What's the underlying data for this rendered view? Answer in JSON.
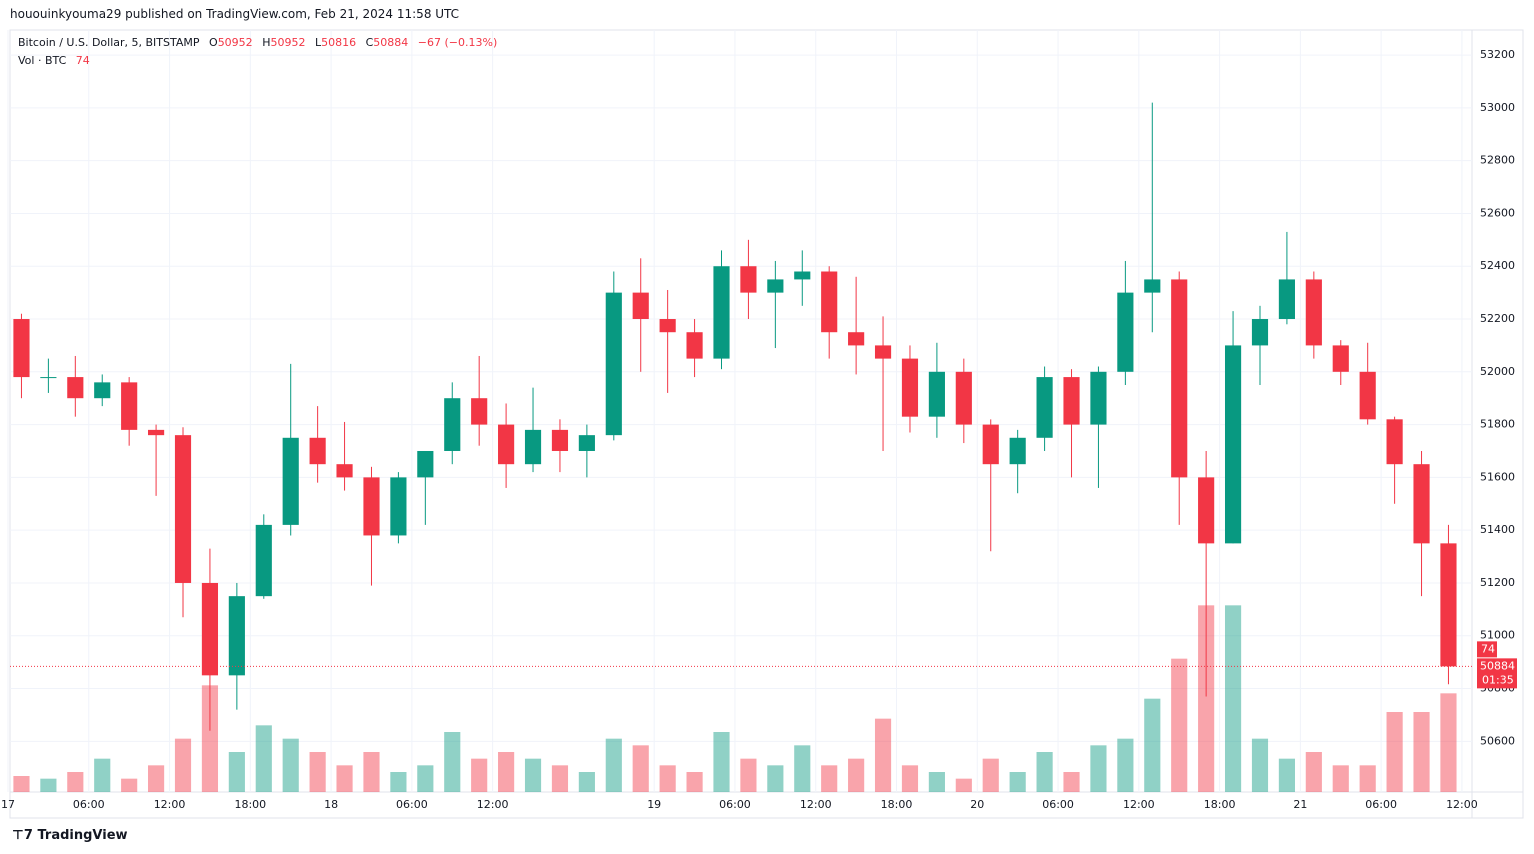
{
  "published": "hououinkyouma29 published on TradingView.com, Feb 21, 2024 11:58 UTC",
  "brand": "TradingView",
  "chart_data": {
    "type": "candlestick",
    "legend": {
      "symbol": "Bitcoin / U.S. Dollar, 5, BITSTAMP",
      "open_label": "O",
      "open": 50952,
      "high_label": "H",
      "high": 50952,
      "low_label": "L",
      "low": 50816,
      "close_label": "C",
      "close": 50884,
      "change": {
        "value": -67,
        "label": "−67"
      },
      "change_pct": {
        "value": -0.13,
        "label": "(−0.13%)"
      },
      "volume_label": "Vol · BTC",
      "volume": 74
    },
    "countdown": "01:35",
    "up_color": "#089981",
    "down_color": "#f23645",
    "grid": true,
    "x": [
      1,
      3,
      5,
      7,
      9,
      11,
      13,
      15,
      17,
      19,
      21,
      23,
      25,
      27,
      29,
      31,
      33,
      35,
      37,
      39,
      41,
      43,
      45,
      47,
      49,
      51,
      53,
      55,
      57,
      59,
      61,
      63,
      65,
      67,
      69,
      71,
      73,
      75,
      77,
      79,
      81,
      83,
      85,
      87,
      89,
      91,
      93,
      95,
      97,
      99,
      101,
      103,
      105,
      107
    ],
    "open": [
      52200,
      51980,
      51980,
      51900,
      51960,
      51780,
      51760,
      51200,
      50850,
      51150,
      51420,
      51750,
      51650,
      51600,
      51380,
      51600,
      51700,
      51900,
      51800,
      51650,
      51780,
      51700,
      51760,
      52300,
      52200,
      52150,
      52050,
      52400,
      52300,
      52350,
      52380,
      52150,
      52100,
      52050,
      51830,
      52000,
      51800,
      51650,
      51750,
      51980,
      51800,
      52000,
      52300,
      52350,
      51600,
      51350,
      52100,
      52200,
      52350,
      52100,
      52000,
      51820,
      51650,
      51350
    ],
    "high": [
      52220,
      52050,
      52060,
      51990,
      51980,
      51800,
      51790,
      51330,
      51200,
      51460,
      52030,
      51870,
      51810,
      51640,
      51620,
      51700,
      51960,
      52060,
      51880,
      51940,
      51820,
      51800,
      52380,
      52430,
      52310,
      52200,
      52460,
      52500,
      52420,
      52460,
      52400,
      52360,
      52210,
      52100,
      52110,
      52050,
      51820,
      51780,
      52020,
      52010,
      52020,
      52420,
      53020,
      52380,
      51700,
      52230,
      52250,
      52530,
      52380,
      52120,
      52110,
      51830,
      51700,
      51420
    ],
    "low": [
      51900,
      51920,
      51830,
      51870,
      51720,
      51530,
      51070,
      50640,
      50720,
      51140,
      51380,
      51580,
      51550,
      51190,
      51350,
      51420,
      51650,
      51720,
      51560,
      51620,
      51620,
      51600,
      51740,
      52000,
      51920,
      51980,
      52010,
      52200,
      52090,
      52250,
      52050,
      51990,
      51700,
      51770,
      51750,
      51730,
      51320,
      51540,
      51700,
      51600,
      51560,
      51950,
      52150,
      51420,
      50770,
      51350,
      51950,
      52180,
      52050,
      51950,
      51800,
      51500,
      51150,
      50816
    ],
    "close": [
      51980,
      51980,
      51900,
      51960,
      51780,
      51760,
      51200,
      50850,
      51150,
      51420,
      51750,
      51650,
      51600,
      51380,
      51600,
      51700,
      51900,
      51800,
      51650,
      51780,
      51700,
      51760,
      52300,
      52200,
      52150,
      52050,
      52400,
      52300,
      52350,
      52380,
      52150,
      52100,
      52050,
      51830,
      52000,
      51800,
      51650,
      51750,
      51980,
      51800,
      52000,
      52300,
      52350,
      51600,
      51350,
      52100,
      52200,
      52350,
      52100,
      52000,
      51820,
      51650,
      51350,
      50884
    ],
    "volume": [
      12,
      10,
      15,
      25,
      10,
      20,
      40,
      80,
      30,
      50,
      40,
      30,
      20,
      30,
      15,
      20,
      45,
      25,
      30,
      25,
      20,
      15,
      40,
      35,
      20,
      15,
      45,
      25,
      20,
      35,
      20,
      25,
      55,
      20,
      15,
      10,
      25,
      15,
      30,
      15,
      35,
      40,
      70,
      100,
      140,
      140,
      40,
      25,
      30,
      20,
      20,
      60,
      60,
      74
    ],
    "xlim": [
      0,
      108.6
    ],
    "ylim": [
      50408,
      53295
    ],
    "y2lim": [
      0,
      150
    ],
    "yticks": [
      50600,
      50800,
      51000,
      51200,
      51400,
      51600,
      51800,
      52000,
      52200,
      52400,
      52600,
      52800,
      53000,
      53200
    ],
    "xticks": [
      {
        "value": 0,
        "label": "17"
      },
      {
        "value": 6,
        "label": "06:00"
      },
      {
        "value": 12,
        "label": "12:00"
      },
      {
        "value": 18,
        "label": "18:00"
      },
      {
        "value": 24,
        "label": "18"
      },
      {
        "value": 30,
        "label": "06:00"
      },
      {
        "value": 36,
        "label": "12:00"
      },
      {
        "value": 48,
        "label": "19"
      },
      {
        "value": 54,
        "label": "06:00"
      },
      {
        "value": 60,
        "label": "12:00"
      },
      {
        "value": 66,
        "label": "18:00"
      },
      {
        "value": 72,
        "label": "20"
      },
      {
        "value": 78,
        "label": "06:00"
      },
      {
        "value": 84,
        "label": "12:00"
      },
      {
        "value": 90,
        "label": "18:00"
      },
      {
        "value": 96,
        "label": "21"
      },
      {
        "value": 102,
        "label": "06:00"
      },
      {
        "value": 108,
        "label": "12:00"
      }
    ]
  }
}
